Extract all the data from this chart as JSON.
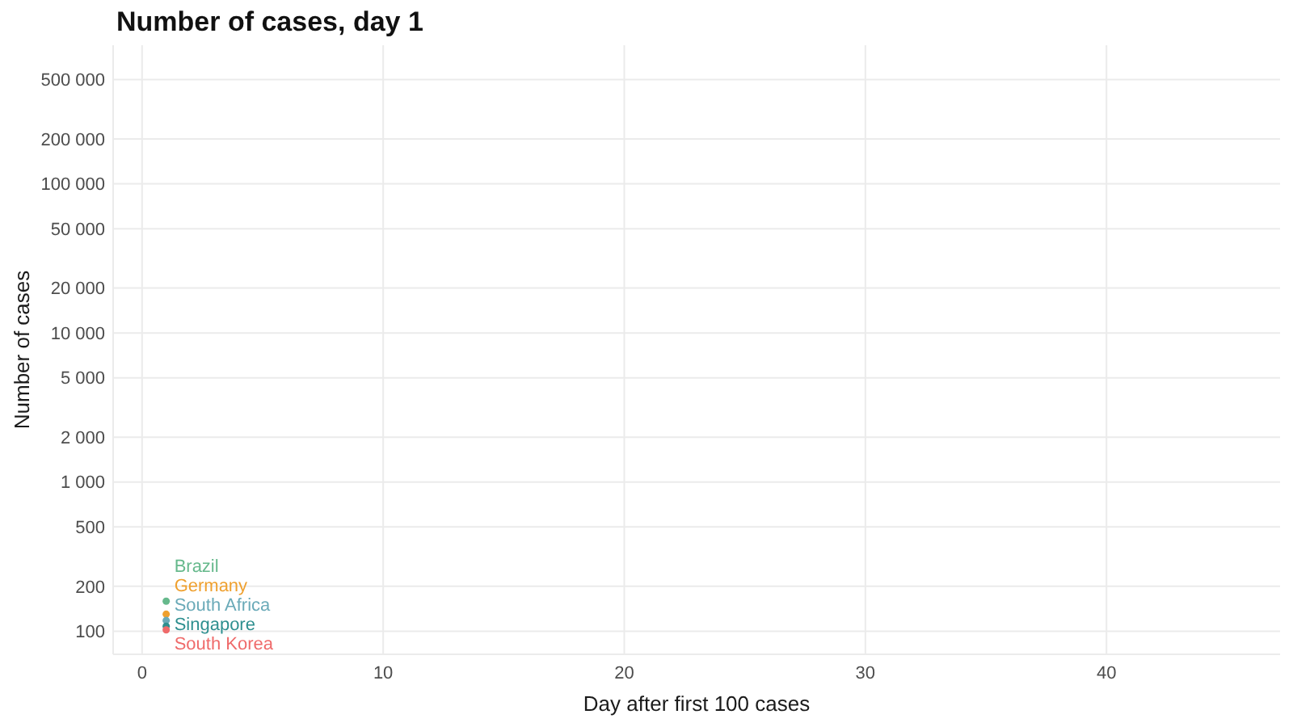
{
  "chart_data": {
    "type": "scatter",
    "title": "Number of cases, day 1",
    "xlabel": "Day after first 100 cases",
    "ylabel": "Number of cases",
    "x": [
      1
    ],
    "series": [
      {
        "name": "Brazil",
        "color": "#66b98c",
        "values": [
          159
        ]
      },
      {
        "name": "Germany",
        "color": "#efa02e",
        "values": [
          130
        ]
      },
      {
        "name": "South Africa",
        "color": "#6aaab8",
        "values": [
          118
        ]
      },
      {
        "name": "Singapore",
        "color": "#2e8f8f",
        "values": [
          108
        ]
      },
      {
        "name": "South Korea",
        "color": "#ef6a6a",
        "values": [
          102
        ]
      }
    ],
    "xlim": [
      -1.2,
      47.2
    ],
    "xticks": [
      0,
      10,
      20,
      30,
      40
    ],
    "ylim": [
      70,
      850000
    ],
    "yticks": [
      100,
      200,
      500,
      {
        "value": 1000,
        "label": "1 000"
      },
      {
        "value": 2000,
        "label": "2 000"
      },
      {
        "value": 5000,
        "label": "5 000"
      },
      {
        "value": 10000,
        "label": "10 000"
      },
      {
        "value": 20000,
        "label": "20 000"
      },
      {
        "value": 50000,
        "label": "50 000"
      },
      {
        "value": 100000,
        "label": "100 000"
      },
      {
        "value": 200000,
        "label": "200 000"
      },
      {
        "value": 500000,
        "label": "500 000"
      }
    ],
    "log": "y",
    "grid": true,
    "marker": "circle"
  }
}
